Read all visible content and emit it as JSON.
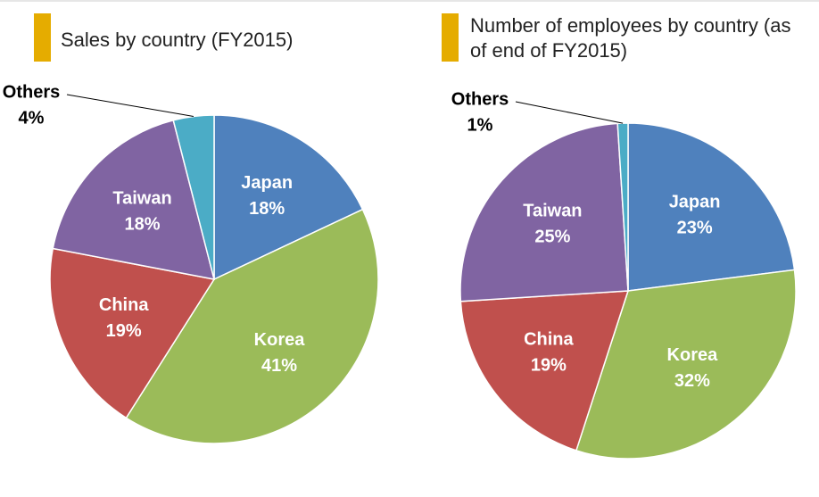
{
  "chart_data": [
    {
      "type": "pie",
      "title": "Sales by country (FY2015)",
      "categories": [
        "Japan",
        "Korea",
        "China",
        "Taiwan",
        "Others"
      ],
      "values": [
        18,
        41,
        19,
        18,
        4
      ],
      "value_labels": [
        "18%",
        "41%",
        "19%",
        "18%",
        "4%"
      ],
      "colors": [
        "#4f81bd",
        "#9bbb59",
        "#c0504d",
        "#8064a2",
        "#4bacc6"
      ]
    },
    {
      "type": "pie",
      "title": "Number of employees by country (as of end of FY2015)",
      "categories": [
        "Japan",
        "Korea",
        "China",
        "Taiwan",
        "Others"
      ],
      "values": [
        23,
        32,
        19,
        25,
        1
      ],
      "value_labels": [
        "23%",
        "32%",
        "19%",
        "25%",
        "1%"
      ],
      "colors": [
        "#4f81bd",
        "#9bbb59",
        "#c0504d",
        "#8064a2",
        "#4bacc6"
      ]
    }
  ]
}
